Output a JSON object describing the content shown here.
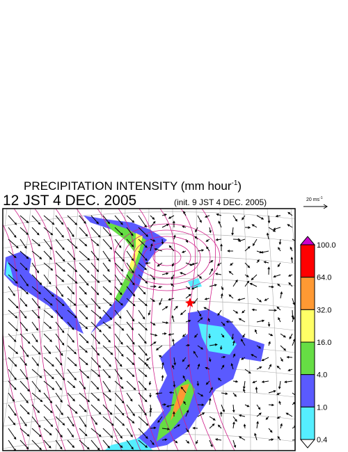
{
  "header": {
    "title": "PRECIPITATION INTENSITY (mm hour",
    "title_exponent": "-1",
    "title_close": ")",
    "valid_time": "12 JST 4 DEC. 2005",
    "init_time": "(init. 9 JST 4 DEC. 2005)"
  },
  "wind_scale": {
    "label": "20 ms",
    "exponent": "-1"
  },
  "colorbar": {
    "labels": [
      "100.0",
      "64.0",
      "32.0",
      "16.0",
      "4.0",
      "1.0",
      "0.4"
    ],
    "colors": [
      "#cc00cc",
      "#ff0000",
      "#ff9933",
      "#ffff66",
      "#66dd44",
      "#5a5aff",
      "#55eeff",
      "#ffffff"
    ]
  }
}
